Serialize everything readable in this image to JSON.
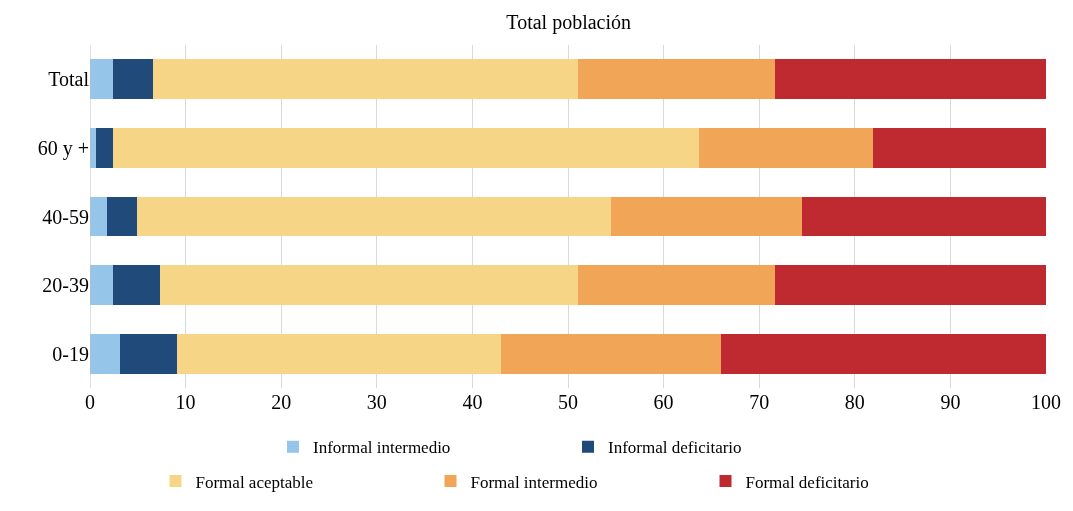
{
  "chart_data": {
    "type": "bar",
    "orientation": "horizontal",
    "stacked": true,
    "title": "Total población",
    "categories": [
      "Total",
      "60 y +",
      "40-59",
      "20-39",
      "0-19"
    ],
    "series": [
      {
        "name": "Informal intermedio",
        "color": "#95c5e9",
        "values": [
          2.4,
          0.6,
          1.8,
          2.4,
          3.1
        ]
      },
      {
        "name": "Informal deficitario",
        "color": "#1f4a7a",
        "values": [
          4.2,
          1.8,
          3.1,
          4.9,
          6.0
        ]
      },
      {
        "name": "Formal aceptable",
        "color": "#f7d586",
        "values": [
          44.4,
          61.3,
          49.6,
          43.7,
          33.9
        ]
      },
      {
        "name": "Formal intermedio",
        "color": "#f0a656",
        "values": [
          20.6,
          18.2,
          20.0,
          20.6,
          23.0
        ]
      },
      {
        "name": "Formal deficitario",
        "color": "#be2a30",
        "values": [
          28.4,
          18.1,
          25.5,
          28.4,
          34.0
        ]
      }
    ],
    "xlim": [
      0,
      100
    ],
    "xticks": [
      0,
      10,
      20,
      30,
      40,
      50,
      60,
      70,
      80,
      90,
      100
    ],
    "grid": "x",
    "legend": "bottom"
  }
}
